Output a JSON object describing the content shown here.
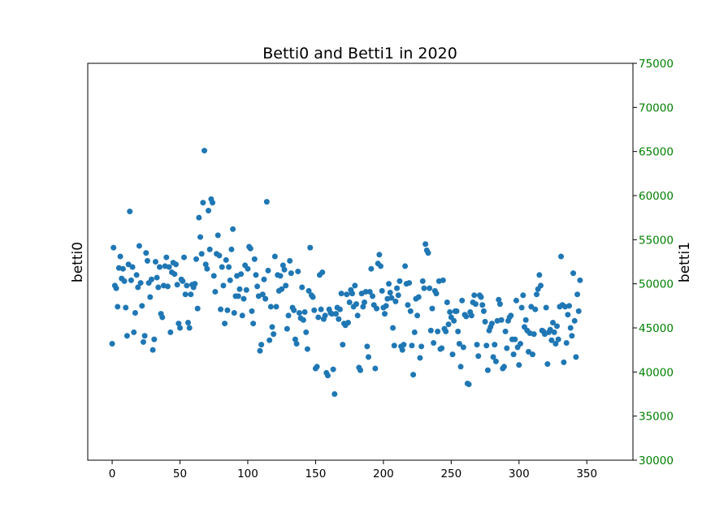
{
  "chart_data": {
    "type": "scatter",
    "title": "Betti0 and Betti1 in 2020",
    "xlabel": "",
    "ylabel": "betti0",
    "y2label": "betti1",
    "xlim": [
      -18,
      384
    ],
    "xticks": [
      0,
      50,
      100,
      150,
      200,
      250,
      300,
      350
    ],
    "ylim": [
      30000,
      75000
    ],
    "y2lim": [
      30000,
      75000
    ],
    "y2ticks": [
      30000,
      35000,
      40000,
      45000,
      50000,
      55000,
      60000,
      65000,
      70000,
      75000
    ],
    "y2tick_color": "#008000",
    "marker_color": "#1f77b4",
    "grid": false,
    "series": [
      {
        "y": [
          43200,
          54100,
          49800,
          49500,
          47400,
          51800,
          53100,
          50600,
          51700,
          50300,
          47300,
          44100,
          52200,
          58200,
          50400,
          51900,
          44500,
          46700,
          51000,
          49600,
          54300,
          50100,
          47500,
          43400,
          44100,
          53500,
          52600,
          50100,
          48500,
          50500,
          42500,
          43700,
          52500,
          50700,
          49600,
          51900,
          46600,
          46200,
          49800,
          52000,
          53000,
          49700,
          51900,
          44500,
          51300,
          52400,
          51100,
          52200,
          49900,
          45500,
          45000,
          50500,
          50300,
          53000,
          48800,
          49800,
          45600,
          45000,
          48800,
          49900,
          49600,
          50000,
          52800,
          47200,
          57500,
          55300,
          53400,
          59200,
          65100,
          52200,
          51700,
          58300,
          53900,
          59600,
          59200,
          50900,
          49100,
          53400,
          55500,
          53200,
          47100,
          51900,
          49800,
          45500,
          52700,
          47000,
          51900,
          50400,
          53900,
          56200,
          46700,
          48600,
          50900,
          48600,
          49400,
          51100,
          46400,
          48300,
          52100,
          49300,
          51700,
          54200,
          54000,
          46900,
          45500,
          52800,
          51000,
          49700,
          48600,
          42400,
          43100,
          48800,
          50500,
          48300,
          59300,
          51500,
          43600,
          47400,
          45100,
          44300,
          53100,
          47400,
          51000,
          49200,
          50900,
          49400,
          52100,
          51600,
          49800,
          44900,
          46400,
          52600,
          51200,
          47300,
          47000,
          43700,
          43200,
          51400,
          46700,
          46100,
          49600,
          45900,
          46800,
          44500,
          42600,
          49200,
          54100,
          48700,
          48500,
          47000,
          40400,
          40600,
          46200,
          51000,
          47100,
          51300,
          46000,
          46400,
          39900,
          39600,
          47100,
          46700,
          46600,
          40300,
          37500,
          46600,
          47300,
          46000,
          47100,
          48900,
          43100,
          45500,
          45300,
          48800,
          45600,
          47900,
          49300,
          48900,
          47400,
          49800,
          47700,
          46400,
          40500,
          40200,
          48900,
          47400,
          47900,
          49100,
          42900,
          41700,
          49100,
          51700,
          48600,
          47600,
          40400,
          47200,
          52300,
          53300,
          52000,
          49200,
          47300,
          46600,
          47500,
          48300,
          50000,
          49000,
          48400,
          45000,
          43000,
          48000,
          49500,
          48700,
          50300,
          42900,
          42500,
          43100,
          52000,
          50000,
          47600,
          50100,
          46900,
          43000,
          39700,
          44500,
          48300,
          46400,
          48500,
          41600,
          42900,
          50300,
          49500,
          54500,
          53800,
          53500,
          49500,
          44700,
          47200,
          43300,
          49200,
          48900,
          44600,
          50300,
          42600,
          42700,
          50400,
          44900,
          44600,
          47900,
          45400,
          46800,
          46200,
          42000,
          45800,
          46900,
          46900,
          44600,
          43200,
          40600,
          48100,
          42800,
          46500,
          46300,
          38700,
          38600,
          46800,
          46400,
          47900,
          48700,
          47700,
          43100,
          41800,
          48700,
          48500,
          47600,
          46900,
          45700,
          43000,
          40200,
          44700,
          45100,
          45500,
          41700,
          43100,
          41200,
          45800,
          48200,
          47700,
          45900,
          40400,
          40600,
          44600,
          42700,
          45800,
          46200,
          46400,
          43700,
          42000,
          43700,
          48100,
          42800,
          40800,
          43200,
          47300,
          48700,
          45100,
          45900,
          44700,
          42300,
          44400,
          47400,
          42000,
          44300,
          47100,
          48800,
          49400,
          51000,
          49800,
          44700,
          44600,
          44300,
          47300,
          40900,
          44500,
          44800,
          43600,
          45600,
          44500,
          43200,
          45200,
          43700,
          47400,
          53100,
          47600,
          41100,
          47400,
          43300,
          46500,
          47500,
          45000,
          44100,
          51200,
          45800,
          41700,
          48800,
          46900,
          50400
        ]
      }
    ]
  }
}
